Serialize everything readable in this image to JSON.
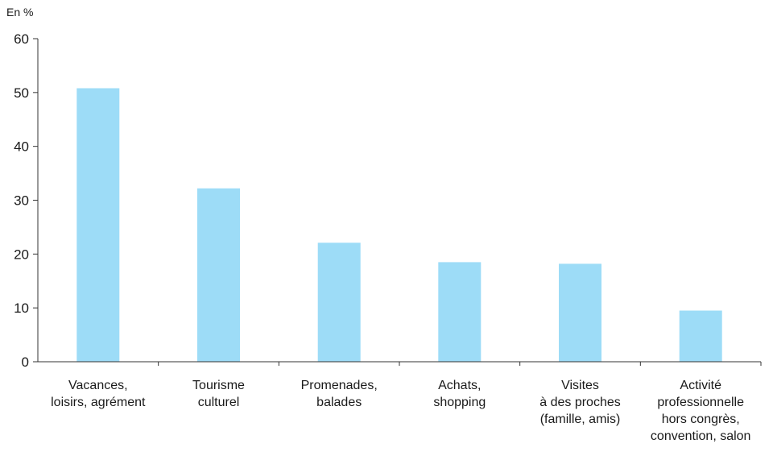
{
  "chart_data": {
    "type": "bar",
    "unit_label": "En %",
    "categories": [
      [
        "Vacances,",
        "loisirs, agrément"
      ],
      [
        "Tourisme",
        "culturel"
      ],
      [
        "Promenades,",
        "balades"
      ],
      [
        "Achats,",
        "shopping"
      ],
      [
        "Visites",
        "à des proches",
        "(famille, amis)"
      ],
      [
        "Activité",
        "professionnelle",
        "hors congrès,",
        "convention, salon"
      ]
    ],
    "values": [
      50.8,
      32.2,
      22.1,
      18.5,
      18.2,
      9.5
    ],
    "ylim": [
      0,
      60
    ],
    "yticks": [
      0,
      10,
      20,
      30,
      40,
      50,
      60
    ],
    "grid": false,
    "legend": "none",
    "bar_color": "#9ddcf7",
    "axis_color": "#333333"
  }
}
